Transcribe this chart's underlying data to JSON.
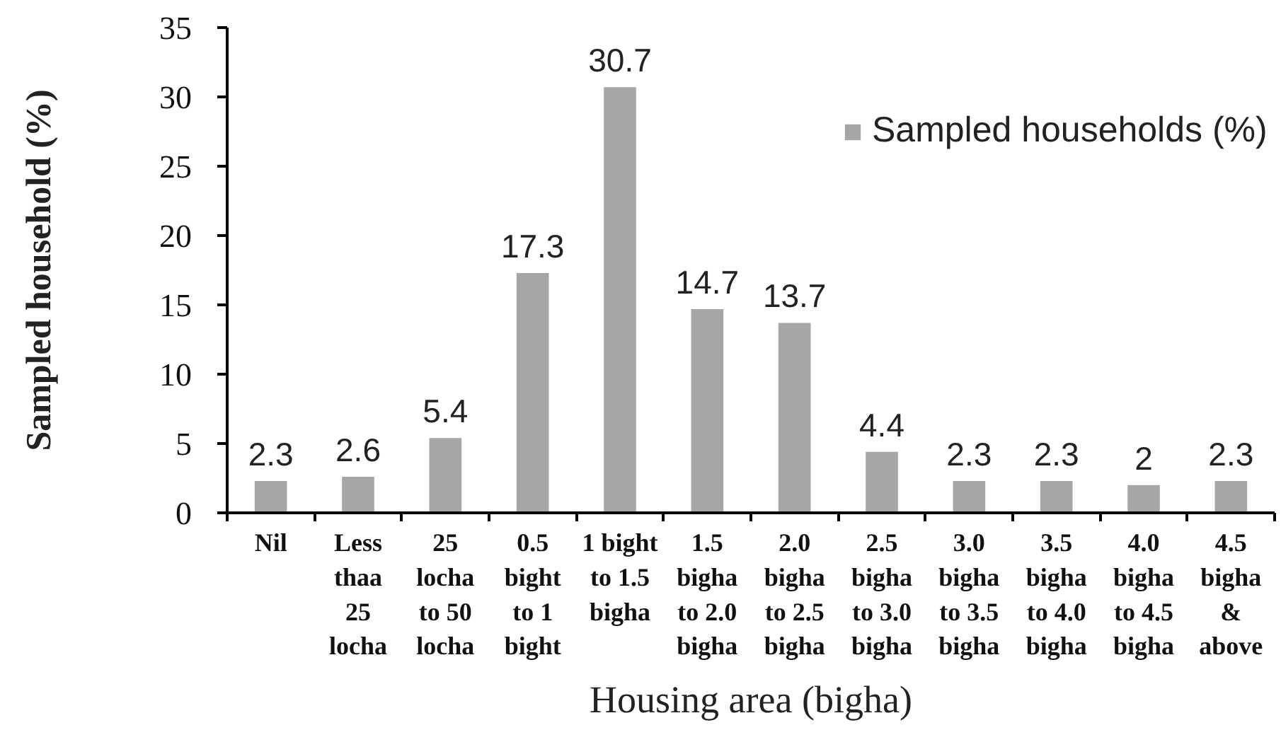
{
  "chart_data": {
    "type": "bar",
    "xlabel": "Housing area (bigha)",
    "ylabel": "Sampled household (%)",
    "categories": [
      "Nil",
      "Less\nthaa\n25\nlocha",
      "25\nlocha\nto 50\nlocha",
      "0.5\nbight\nto 1\nbight",
      "1 bight\nto 1.5\nbigha",
      "1.5\nbigha\nto 2.0\nbigha",
      "2.0\nbigha\nto 2.5\nbigha",
      "2.5\nbigha\nto 3.0\nbigha",
      "3.0\nbigha\nto 3.5\nbigha",
      "3.5\nbigha\nto 4.0\nbigha",
      "4.0\nbigha\nto 4.5\nbigha",
      "4.5\nbigha\n&\nabove"
    ],
    "series": [
      {
        "name": "Sampled households (%)",
        "color": "#a6a6a6",
        "values": [
          2.3,
          2.6,
          5.4,
          17.3,
          30.7,
          14.7,
          13.7,
          4.4,
          2.3,
          2.3,
          2,
          2.3
        ]
      }
    ],
    "ylim": [
      0,
      35
    ],
    "yticks": [
      0,
      5,
      10,
      15,
      20,
      25,
      30,
      35
    ],
    "data_labels": true,
    "legend": "top right"
  }
}
